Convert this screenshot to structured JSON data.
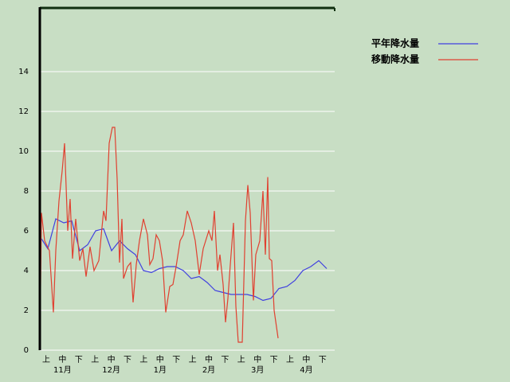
{
  "chart_data": {
    "type": "line",
    "categories": [
      "上",
      "中",
      "下",
      "上",
      "中",
      "下",
      "上",
      "中",
      "下",
      "上",
      "中",
      "下",
      "上",
      "中",
      "下",
      "上",
      "中",
      "下"
    ],
    "months": [
      "11月",
      "12月",
      "1月",
      "2月",
      "3月",
      "4月"
    ],
    "xlim": [
      0,
      185
    ],
    "ylim": [
      0,
      17.2
    ],
    "yticks": [
      0,
      2,
      4,
      6,
      8,
      10,
      12,
      14
    ],
    "grid": true,
    "legend": "top-right",
    "series": [
      {
        "name": "平年降水量",
        "color": "#4040e0",
        "x": [
          1,
          5,
          10,
          15,
          20,
          25,
          30,
          35,
          40,
          45,
          50,
          55,
          60,
          65,
          70,
          75,
          80,
          85,
          90,
          95,
          100,
          105,
          110,
          115,
          120,
          125,
          130,
          135,
          140,
          145,
          150,
          155,
          160,
          165,
          170,
          175,
          180
        ],
        "values": [
          5.6,
          5.1,
          6.6,
          6.4,
          6.5,
          5.0,
          5.3,
          6.0,
          6.1,
          5.0,
          5.5,
          5.1,
          4.8,
          4.0,
          3.9,
          4.1,
          4.2,
          4.2,
          4.0,
          3.6,
          3.7,
          3.4,
          3.0,
          2.9,
          2.8,
          2.8,
          2.8,
          2.7,
          2.5,
          2.6,
          3.1,
          3.2,
          3.5,
          4.0,
          4.2,
          4.5,
          4.1
        ]
      },
      {
        "name": "移動降水量",
        "color": "#e04030",
        "x": [
          0,
          1,
          3,
          6,
          8.5,
          10,
          12,
          14,
          15.5,
          17.5,
          19,
          20.5,
          22.5,
          25,
          27,
          29,
          31.5,
          34,
          37,
          40,
          41.5,
          43.5,
          45.5,
          47,
          48.5,
          50,
          51.5,
          52.5,
          55,
          57,
          58.5,
          60.5,
          62.5,
          65,
          67.5,
          69,
          71,
          73,
          75,
          77,
          79,
          81.5,
          83.5,
          85.5,
          88,
          90,
          92.5,
          95,
          97.5,
          100,
          102.5,
          106,
          108,
          109.5,
          111.5,
          113,
          115,
          116.5,
          118,
          119.5,
          121.5,
          123,
          124.5,
          127,
          129,
          130.5,
          132,
          134,
          135.5,
          138,
          140,
          141.5,
          143,
          144,
          145.5,
          147,
          149.5
        ],
        "values": [
          0,
          6.9,
          5.5,
          5.0,
          1.9,
          5.0,
          7.5,
          9.0,
          10.4,
          6.0,
          7.6,
          4.6,
          6.6,
          4.5,
          5.1,
          3.7,
          5.2,
          4.0,
          4.5,
          7.0,
          6.5,
          10.4,
          11.2,
          11.2,
          8.6,
          4.4,
          6.6,
          3.6,
          4.2,
          4.4,
          2.4,
          4.3,
          5.5,
          6.6,
          5.8,
          4.3,
          4.6,
          5.8,
          5.5,
          4.5,
          1.9,
          3.2,
          3.3,
          4.2,
          5.5,
          5.8,
          7.0,
          6.4,
          5.5,
          3.8,
          5.1,
          6.0,
          5.5,
          7.0,
          4.0,
          4.8,
          3.3,
          1.4,
          2.6,
          4.3,
          6.4,
          2.2,
          0.4,
          0.4,
          6.5,
          8.3,
          6.9,
          2.5,
          4.8,
          5.5,
          8.0,
          4.8,
          8.7,
          4.6,
          4.5,
          2.0,
          0.6
        ]
      }
    ]
  }
}
